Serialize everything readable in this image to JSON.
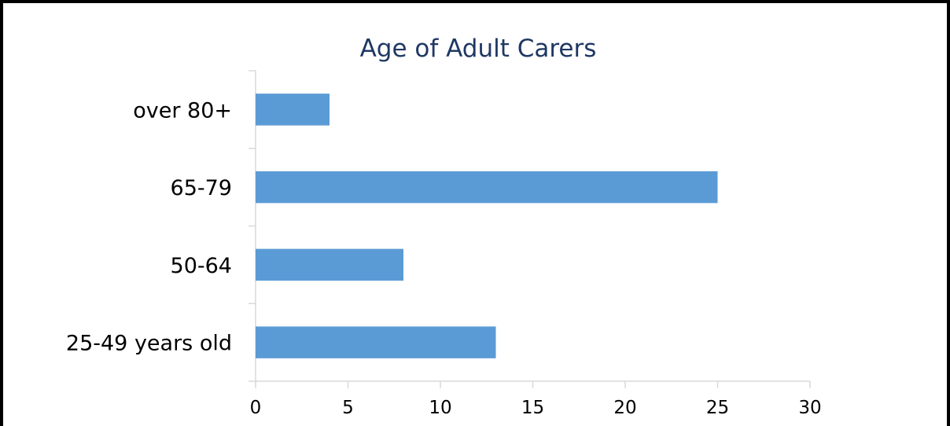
{
  "chart_data": {
    "type": "bar",
    "orientation": "horizontal",
    "title": "Age of Adult Carers",
    "xlabel": "",
    "ylabel": "",
    "categories": [
      "25-49 years old",
      "50-64",
      "65-79",
      "over 80+"
    ],
    "values": [
      13,
      8,
      25,
      4
    ],
    "xlim": [
      0,
      30
    ],
    "xticks": [
      "0",
      "5",
      "10",
      "15",
      "20",
      "25",
      "30"
    ],
    "grid": false,
    "legend": "none",
    "colors": {
      "bar": "#5b9bd5",
      "title": "#1f3864",
      "axis": "#d9d9d9"
    }
  }
}
